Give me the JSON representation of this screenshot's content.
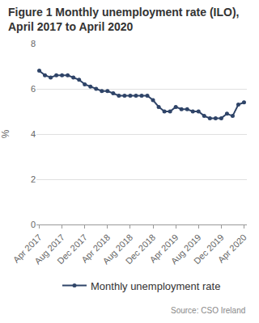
{
  "chart_data": {
    "type": "line",
    "title": "Figure 1 Monthly unemployment rate (ILO), April 2017 to April 2020",
    "y_label": "%",
    "source": "Source: CSO Ireland",
    "categories": [
      "Apr 2017",
      null,
      null,
      null,
      "Aug 2017",
      null,
      null,
      null,
      "Dec 2017",
      null,
      null,
      null,
      "Apr 2018",
      null,
      null,
      null,
      "Aug 2018",
      null,
      null,
      null,
      "Dec 2018",
      null,
      null,
      null,
      "Apr 2019",
      null,
      null,
      null,
      "Aug 2019",
      null,
      null,
      null,
      "Dec 2019",
      null,
      null,
      null,
      "Apr 2020"
    ],
    "series": [
      {
        "name": "Monthly unemployment rate",
        "color": "#2f4468",
        "marker": "circle",
        "line_style": "solid",
        "values": [
          6.8,
          6.6,
          6.5,
          6.6,
          6.6,
          6.6,
          6.5,
          6.4,
          6.2,
          6.1,
          6.0,
          5.9,
          5.9,
          5.8,
          5.7,
          5.7,
          5.7,
          5.7,
          5.7,
          5.7,
          5.5,
          5.2,
          5.0,
          5.0,
          5.2,
          5.1,
          5.1,
          5.0,
          5.0,
          4.8,
          4.7,
          4.7,
          4.7,
          4.9,
          4.8,
          5.3,
          5.4
        ]
      }
    ],
    "ylim": [
      0,
      8
    ],
    "yticks": [
      0,
      2,
      4,
      6,
      8
    ],
    "grid": true,
    "legend": "bottom"
  }
}
